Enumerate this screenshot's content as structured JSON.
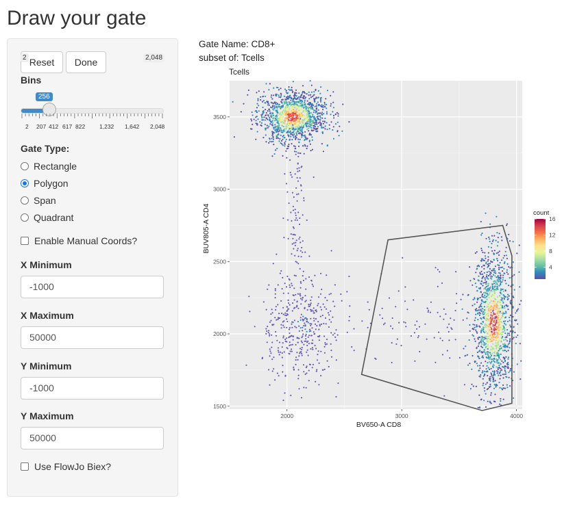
{
  "page_title": "Draw your gate",
  "buttons": {
    "reset": "Reset",
    "done": "Done"
  },
  "bins": {
    "label": "Bins",
    "min_label": "2",
    "max_label": "2,048",
    "value_label": "256",
    "value_fraction": 0.125,
    "ticks": [
      "2",
      "207",
      "412",
      "617",
      "822",
      "1,232",
      "1,642",
      "2,048"
    ]
  },
  "gate_type": {
    "label": "Gate Type:",
    "options": [
      "Rectangle",
      "Polygon",
      "Span",
      "Quadrant"
    ],
    "selected": "Polygon"
  },
  "manual_coords": {
    "label": "Enable Manual Coords?",
    "checked": false
  },
  "fields": {
    "x_min": {
      "label": "X Minimum",
      "value": "-1000"
    },
    "x_max": {
      "label": "X Maximum",
      "value": "50000"
    },
    "y_min": {
      "label": "Y Minimum",
      "value": "-1000"
    },
    "y_max": {
      "label": "Y Maximum",
      "value": "50000"
    }
  },
  "biex": {
    "label": "Use FlowJo Biex?",
    "checked": false
  },
  "gate_info": {
    "name_line": "Gate Name: CD8+",
    "subset_line": "subset of: Tcells"
  },
  "plot": {
    "title": "Tcells",
    "xlabel": "BV650-A CD8",
    "ylabel": "BUV805-A CD4",
    "x_ticks": [
      "2000",
      "3000",
      "4000"
    ],
    "y_ticks": [
      "1500",
      "2000",
      "2500",
      "3000",
      "3500"
    ],
    "legend_title": "count",
    "legend_ticks": [
      "16",
      "12",
      "8",
      "4"
    ],
    "panel_bg": "#ebebeb",
    "gate_color": "#555555"
  },
  "chart_data": {
    "type": "scatter",
    "title": "Tcells",
    "xlabel": "BV650-A CD8",
    "ylabel": "BUV805-A CD4",
    "xlim": [
      1500,
      4050
    ],
    "ylim": [
      1480,
      3750
    ],
    "grid": true,
    "legend_placement": "right",
    "legend_title": "count",
    "legend_range": [
      1,
      16
    ],
    "clusters": [
      {
        "center": [
          2050,
          3500
        ],
        "spread": [
          150,
          90
        ],
        "density": "high"
      },
      {
        "center": [
          2120,
          2050
        ],
        "spread": [
          170,
          200
        ],
        "density": "low"
      },
      {
        "center": [
          2080,
          2800
        ],
        "spread": [
          40,
          350
        ],
        "density": "sparse"
      },
      {
        "center": [
          3800,
          2080
        ],
        "spread": [
          90,
          250
        ],
        "density": "high"
      },
      {
        "center": [
          3300,
          2100
        ],
        "spread": [
          350,
          180
        ],
        "density": "sparse"
      }
    ],
    "gate_polygon": [
      [
        2880,
        2650
      ],
      [
        3880,
        2750
      ],
      [
        3960,
        2540
      ],
      [
        3960,
        1520
      ],
      [
        3700,
        1470
      ],
      [
        2650,
        1720
      ]
    ]
  }
}
